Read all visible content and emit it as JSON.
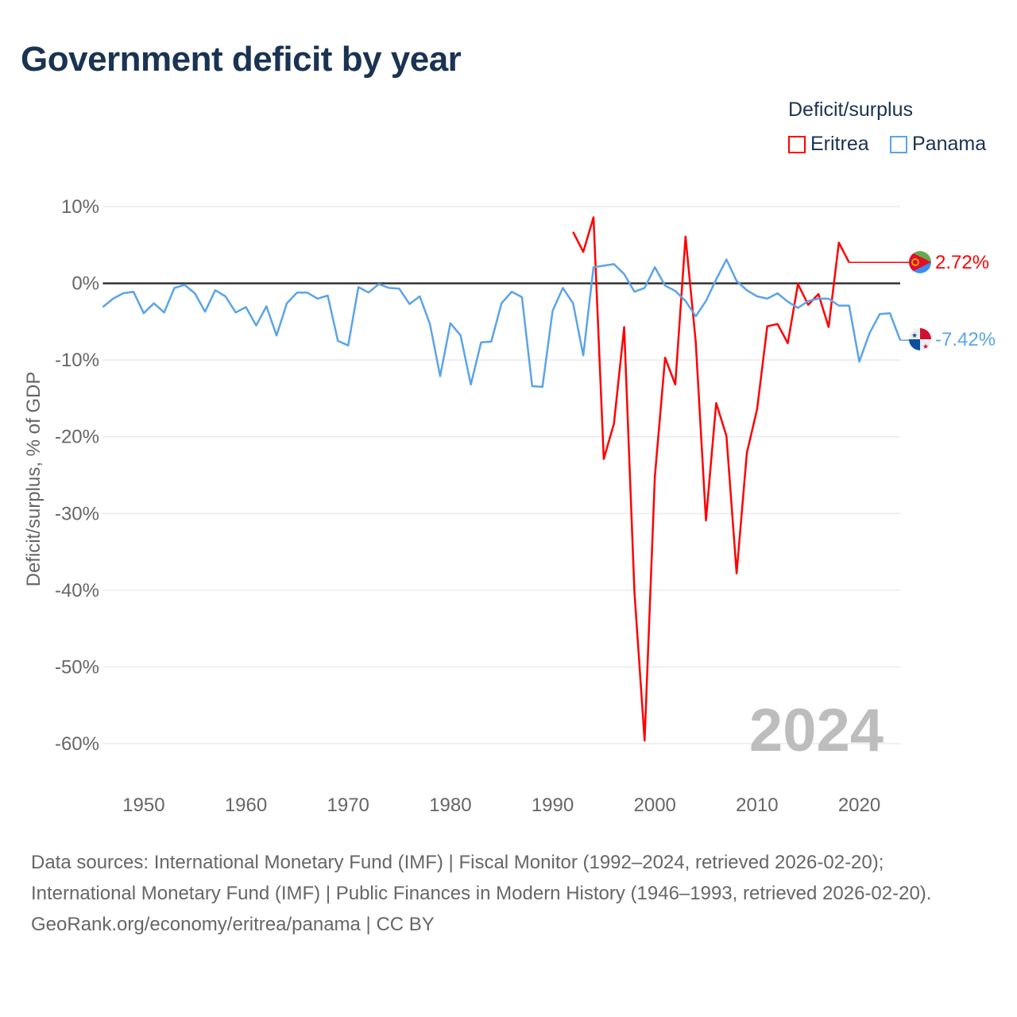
{
  "title": "Government deficit by year",
  "legend": {
    "title": "Deficit/surplus",
    "items": [
      {
        "name": "Eritrea",
        "color": "#ff0000"
      },
      {
        "name": "Panama",
        "color": "#5ba4e8"
      }
    ]
  },
  "watermark_year": "2024",
  "end_labels": {
    "eritrea": "2.72%",
    "panama": "-7.42%"
  },
  "footer": {
    "sources": "Data sources: International Monetary Fund (IMF) | Fiscal Monitor (1992–2024, retrieved 2026-02-20); International Monetary Fund (IMF) | Public Finances in Modern History (1946–1993, retrieved 2026-02-20).",
    "credit": "GeoRank.org/economy/eritrea/panama | CC BY"
  },
  "chart_data": {
    "type": "line",
    "title": "Government deficit by year",
    "xlabel": "",
    "ylabel": "Deficit/surplus, % of GDP",
    "xlim": [
      1946,
      2024
    ],
    "ylim": [
      -60,
      10
    ],
    "x_ticks": [
      1950,
      1960,
      1970,
      1980,
      1990,
      2000,
      2010,
      2020
    ],
    "y_ticks": [
      10,
      0,
      -10,
      -20,
      -30,
      -40,
      -50,
      -60
    ],
    "y_tick_labels": [
      "10%",
      "0%",
      "-10%",
      "-20%",
      "-30%",
      "-40%",
      "-50%",
      "-60%"
    ],
    "grid": true,
    "legend_position": "top-right",
    "series": [
      {
        "name": "Eritrea",
        "color": "#ff0000",
        "start_year": 1992,
        "values": [
          6.7,
          4.1,
          8.6,
          -22.9,
          -18.3,
          -5.7,
          -40.2,
          -59.6,
          -25.2,
          -9.7,
          -13.2,
          6.1,
          -7.7,
          -30.9,
          -15.6,
          -19.9,
          -37.8,
          -22.1,
          -16.4,
          -5.6,
          -5.3,
          -7.8,
          -0.1,
          -2.8,
          -1.4,
          -5.7,
          5.3,
          2.72
        ]
      },
      {
        "name": "Panama",
        "color": "#5ba4e8",
        "start_year": 1946,
        "values": [
          -3.1,
          -2.0,
          -1.3,
          -1.1,
          -3.9,
          -2.6,
          -3.8,
          -0.6,
          -0.2,
          -1.3,
          -3.7,
          -0.9,
          -1.7,
          -3.8,
          -3.1,
          -5.5,
          -3.0,
          -6.8,
          -2.6,
          -1.2,
          -1.2,
          -2.0,
          -1.6,
          -7.5,
          -8.1,
          -0.5,
          -1.2,
          -0.1,
          -0.6,
          -0.7,
          -2.7,
          -1.7,
          -5.3,
          -12.1,
          -5.2,
          -6.8,
          -13.2,
          -7.7,
          -7.6,
          -2.6,
          -1.1,
          -1.8,
          -13.4,
          -13.5,
          -3.6,
          -0.6,
          -2.6,
          -9.4,
          2.1,
          2.3,
          2.5,
          1.2,
          -1.1,
          -0.6,
          2.1,
          -0.3,
          -1.0,
          -2.3,
          -4.3,
          -2.3,
          0.5,
          3.1,
          0.3,
          -0.9,
          -1.7,
          -2.0,
          -1.3,
          -2.4,
          -3.2,
          -2.3,
          -2.0,
          -2.0,
          -2.9,
          -2.9,
          -10.2,
          -6.5,
          -4.0,
          -3.9,
          -7.42
        ]
      }
    ]
  }
}
